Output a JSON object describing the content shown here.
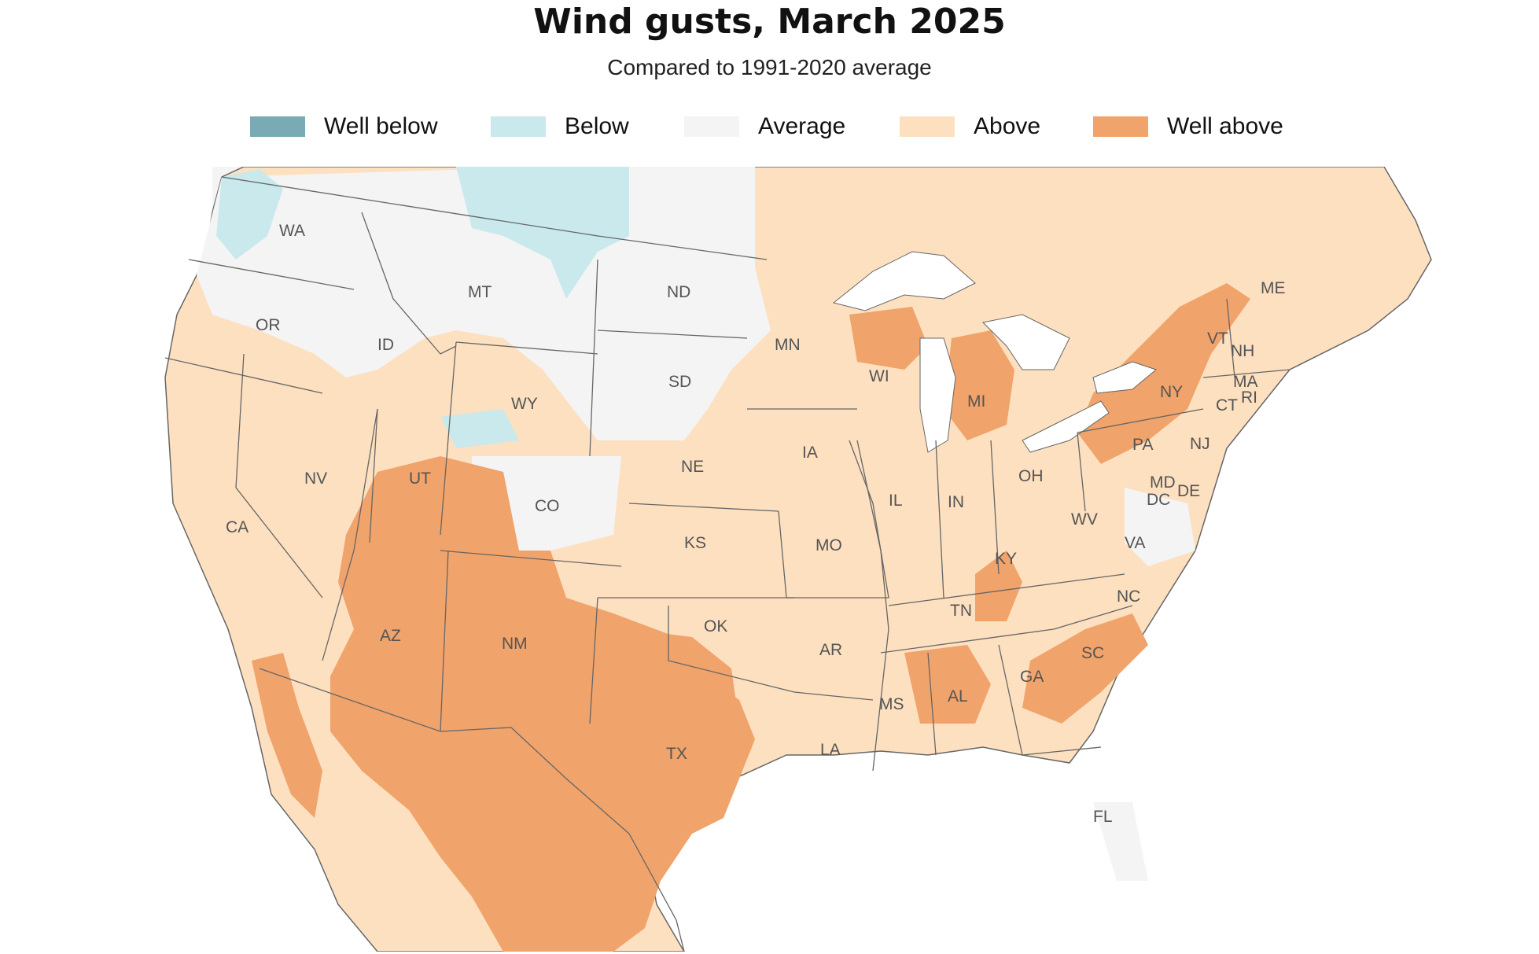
{
  "title": "Wind gusts, March 2025",
  "subtitle": "Compared to 1991-2020 average",
  "legend": [
    {
      "label": "Well below",
      "color": "#7aaab3"
    },
    {
      "label": "Below",
      "color": "#c9e9ed"
    },
    {
      "label": "Average",
      "color": "#f4f4f4"
    },
    {
      "label": "Above",
      "color": "#fde0c0"
    },
    {
      "label": "Well above",
      "color": "#f0a36a"
    }
  ],
  "colors": {
    "water": "#ffffff",
    "land_outside": "#f4f4f4",
    "border": "#666666"
  },
  "states": {
    "WA": "WA",
    "OR": "OR",
    "ID": "ID",
    "MT": "MT",
    "ND": "ND",
    "MN": "MN",
    "WY": "WY",
    "SD": "SD",
    "WI": "WI",
    "MI": "MI",
    "NY": "NY",
    "VT": "VT",
    "NH": "NH",
    "ME": "ME",
    "MA": "MA",
    "CT": "CT",
    "RI": "RI",
    "PA": "PA",
    "NJ": "NJ",
    "NV": "NV",
    "UT": "UT",
    "CO": "CO",
    "NE": "NE",
    "IA": "IA",
    "IL": "IL",
    "IN": "IN",
    "OH": "OH",
    "MD": "MD",
    "DE": "DE",
    "DC": "DC",
    "WV": "WV",
    "VA": "VA",
    "CA": "CA",
    "KS": "KS",
    "MO": "MO",
    "KY": "KY",
    "NC": "NC",
    "TN": "TN",
    "AZ": "AZ",
    "NM": "NM",
    "OK": "OK",
    "AR": "AR",
    "SC": "SC",
    "GA": "GA",
    "AL": "AL",
    "MS": "MS",
    "LA": "LA",
    "TX": "TX",
    "FL": "FL"
  }
}
